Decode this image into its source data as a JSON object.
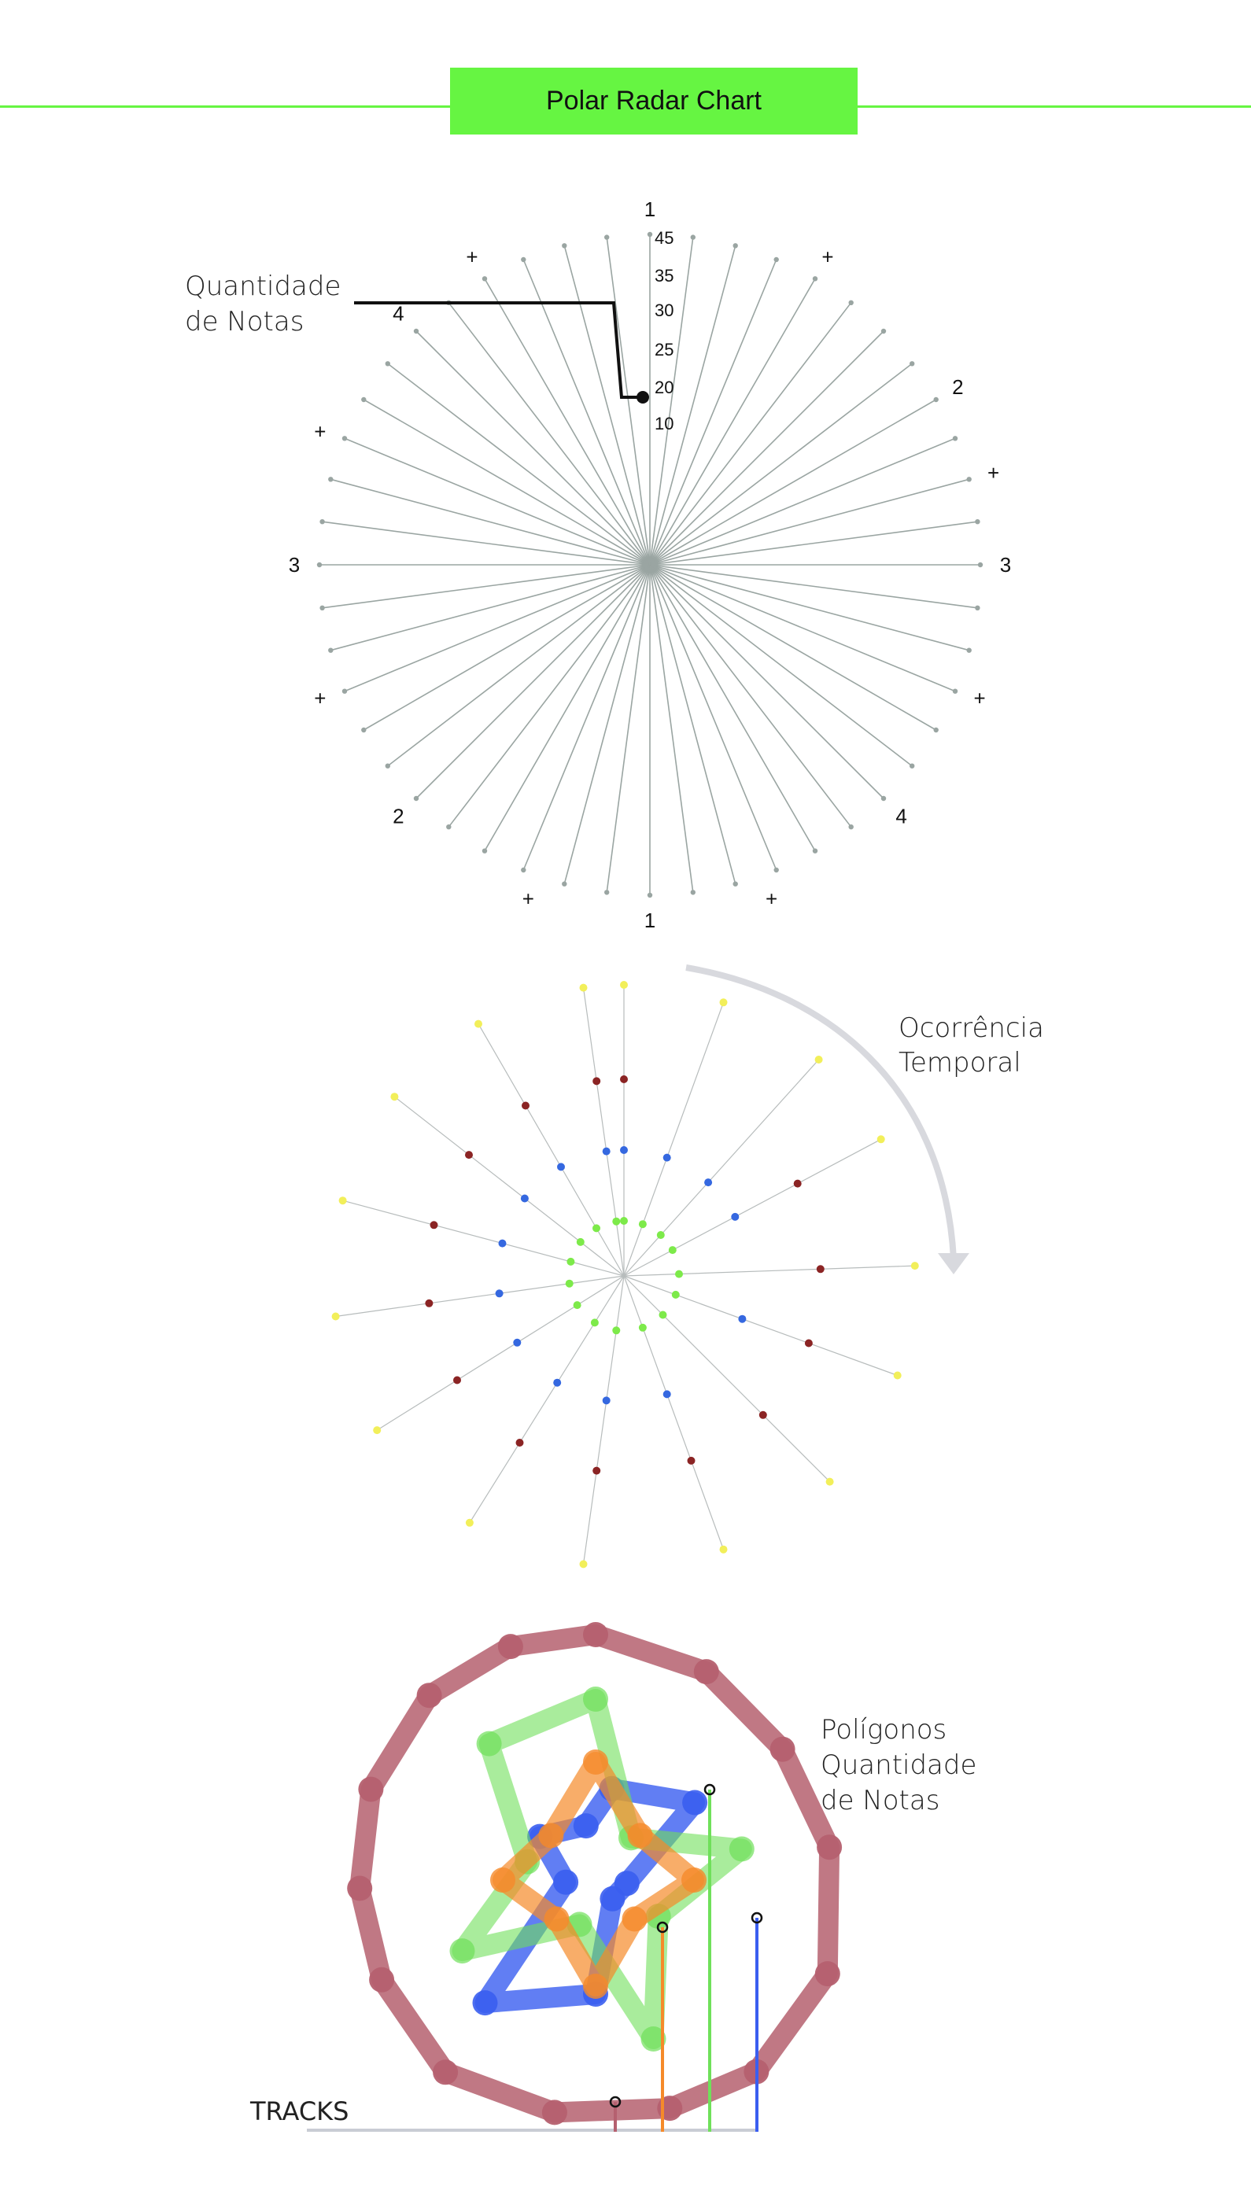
{
  "header": {
    "title": "Polar Radar Chart",
    "accent_color": "#66f542"
  },
  "radar": {
    "spoke_count": 48,
    "spoke_color": "#9aa5a2",
    "scale_ticks": [
      "45",
      "35",
      "30",
      "25",
      "20",
      "10"
    ],
    "angular_labels": [
      {
        "text": "1",
        "angle_deg": 0
      },
      {
        "text": "+",
        "angle_deg": 30
      },
      {
        "text": "2",
        "angle_deg": 60
      },
      {
        "text": "+",
        "angle_deg": 75
      },
      {
        "text": "3",
        "angle_deg": 90
      },
      {
        "text": "+",
        "angle_deg": 112
      },
      {
        "text": "4",
        "angle_deg": 135
      },
      {
        "text": "+",
        "angle_deg": 160
      },
      {
        "text": "1",
        "angle_deg": 180
      },
      {
        "text": "+",
        "angle_deg": 200
      },
      {
        "text": "2",
        "angle_deg": 225
      },
      {
        "text": "+",
        "angle_deg": 248
      },
      {
        "text": "3",
        "angle_deg": 270
      },
      {
        "text": "+",
        "angle_deg": 292
      },
      {
        "text": "4",
        "angle_deg": 315
      },
      {
        "text": "+",
        "angle_deg": 330
      }
    ],
    "callout_lines": [
      "Quantidade",
      "de Notas"
    ]
  },
  "temporal": {
    "callout_lines": [
      "Ocorrência",
      "Temporal"
    ],
    "ring_colors": [
      "#7dea4a",
      "#3568e0",
      "#8b2424",
      "#f2ef5a"
    ],
    "spokes": [
      {
        "angle_deg": 0,
        "rings": [
          1,
          2,
          3,
          4
        ]
      },
      {
        "angle_deg": 20,
        "rings": [
          1,
          2,
          4
        ]
      },
      {
        "angle_deg": 42,
        "rings": [
          1,
          2,
          4
        ]
      },
      {
        "angle_deg": 62,
        "rings": [
          1,
          2,
          3,
          4
        ]
      },
      {
        "angle_deg": 88,
        "rings": [
          1,
          3,
          4
        ]
      },
      {
        "angle_deg": 110,
        "rings": [
          1,
          2,
          3,
          4
        ]
      },
      {
        "angle_deg": 135,
        "rings": [
          1,
          3,
          4
        ]
      },
      {
        "angle_deg": 160,
        "rings": [
          1,
          2,
          3,
          4
        ]
      },
      {
        "angle_deg": 188,
        "rings": [
          1,
          2,
          3,
          4
        ]
      },
      {
        "angle_deg": 212,
        "rings": [
          1,
          2,
          3,
          4
        ]
      },
      {
        "angle_deg": 238,
        "rings": [
          1,
          2,
          3,
          4
        ]
      },
      {
        "angle_deg": 262,
        "rings": [
          1,
          2,
          3,
          4
        ]
      },
      {
        "angle_deg": 285,
        "rings": [
          1,
          2,
          3,
          4
        ]
      },
      {
        "angle_deg": 308,
        "rings": [
          1,
          2,
          3,
          4
        ]
      },
      {
        "angle_deg": 330,
        "rings": [
          1,
          2,
          3,
          4
        ]
      },
      {
        "angle_deg": 352,
        "rings": [
          1,
          2,
          3,
          4
        ]
      }
    ]
  },
  "polygons": {
    "callout_lines": [
      "Polígonos",
      "Quantidade",
      "de Notas"
    ],
    "tracks_label": "TRACKS",
    "tracks": [
      {
        "color": "#b5606f",
        "opacity": 0.85
      },
      {
        "color": "#3a5ef0",
        "opacity": 0.8
      },
      {
        "color": "#6fe05a",
        "opacity": 0.6
      },
      {
        "color": "#f58a2a",
        "opacity": 0.7
      }
    ]
  }
}
